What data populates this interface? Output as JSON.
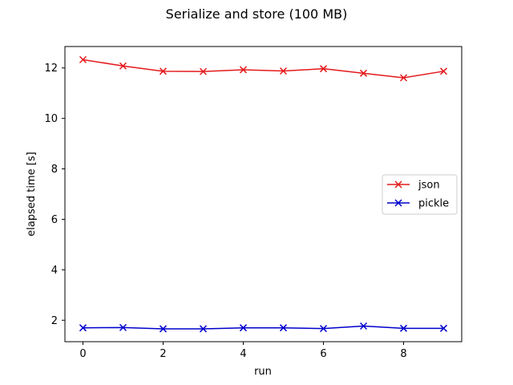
{
  "chart_data": {
    "type": "line",
    "title": "Serialize and store (100 MB)",
    "xlabel": "run",
    "ylabel": "elapsed time [s]",
    "xlim": [
      -0.45,
      9.45
    ],
    "ylim": [
      1.15,
      12.85
    ],
    "xticks": [
      0,
      2,
      4,
      6,
      8
    ],
    "yticks": [
      2,
      4,
      6,
      8,
      10,
      12
    ],
    "grid": false,
    "legend_position": "center-right",
    "x": [
      0,
      1,
      2,
      3,
      4,
      5,
      6,
      7,
      8,
      9
    ],
    "series": [
      {
        "name": "json",
        "color": "#e41a1c",
        "marker": "x",
        "values": [
          12.33,
          12.08,
          11.87,
          11.86,
          11.93,
          11.88,
          11.97,
          11.79,
          11.61,
          11.87
        ]
      },
      {
        "name": "pickle",
        "color": "#0000cc",
        "marker": "x",
        "values": [
          1.7,
          1.71,
          1.66,
          1.66,
          1.7,
          1.7,
          1.67,
          1.77,
          1.68,
          1.68
        ]
      }
    ]
  }
}
